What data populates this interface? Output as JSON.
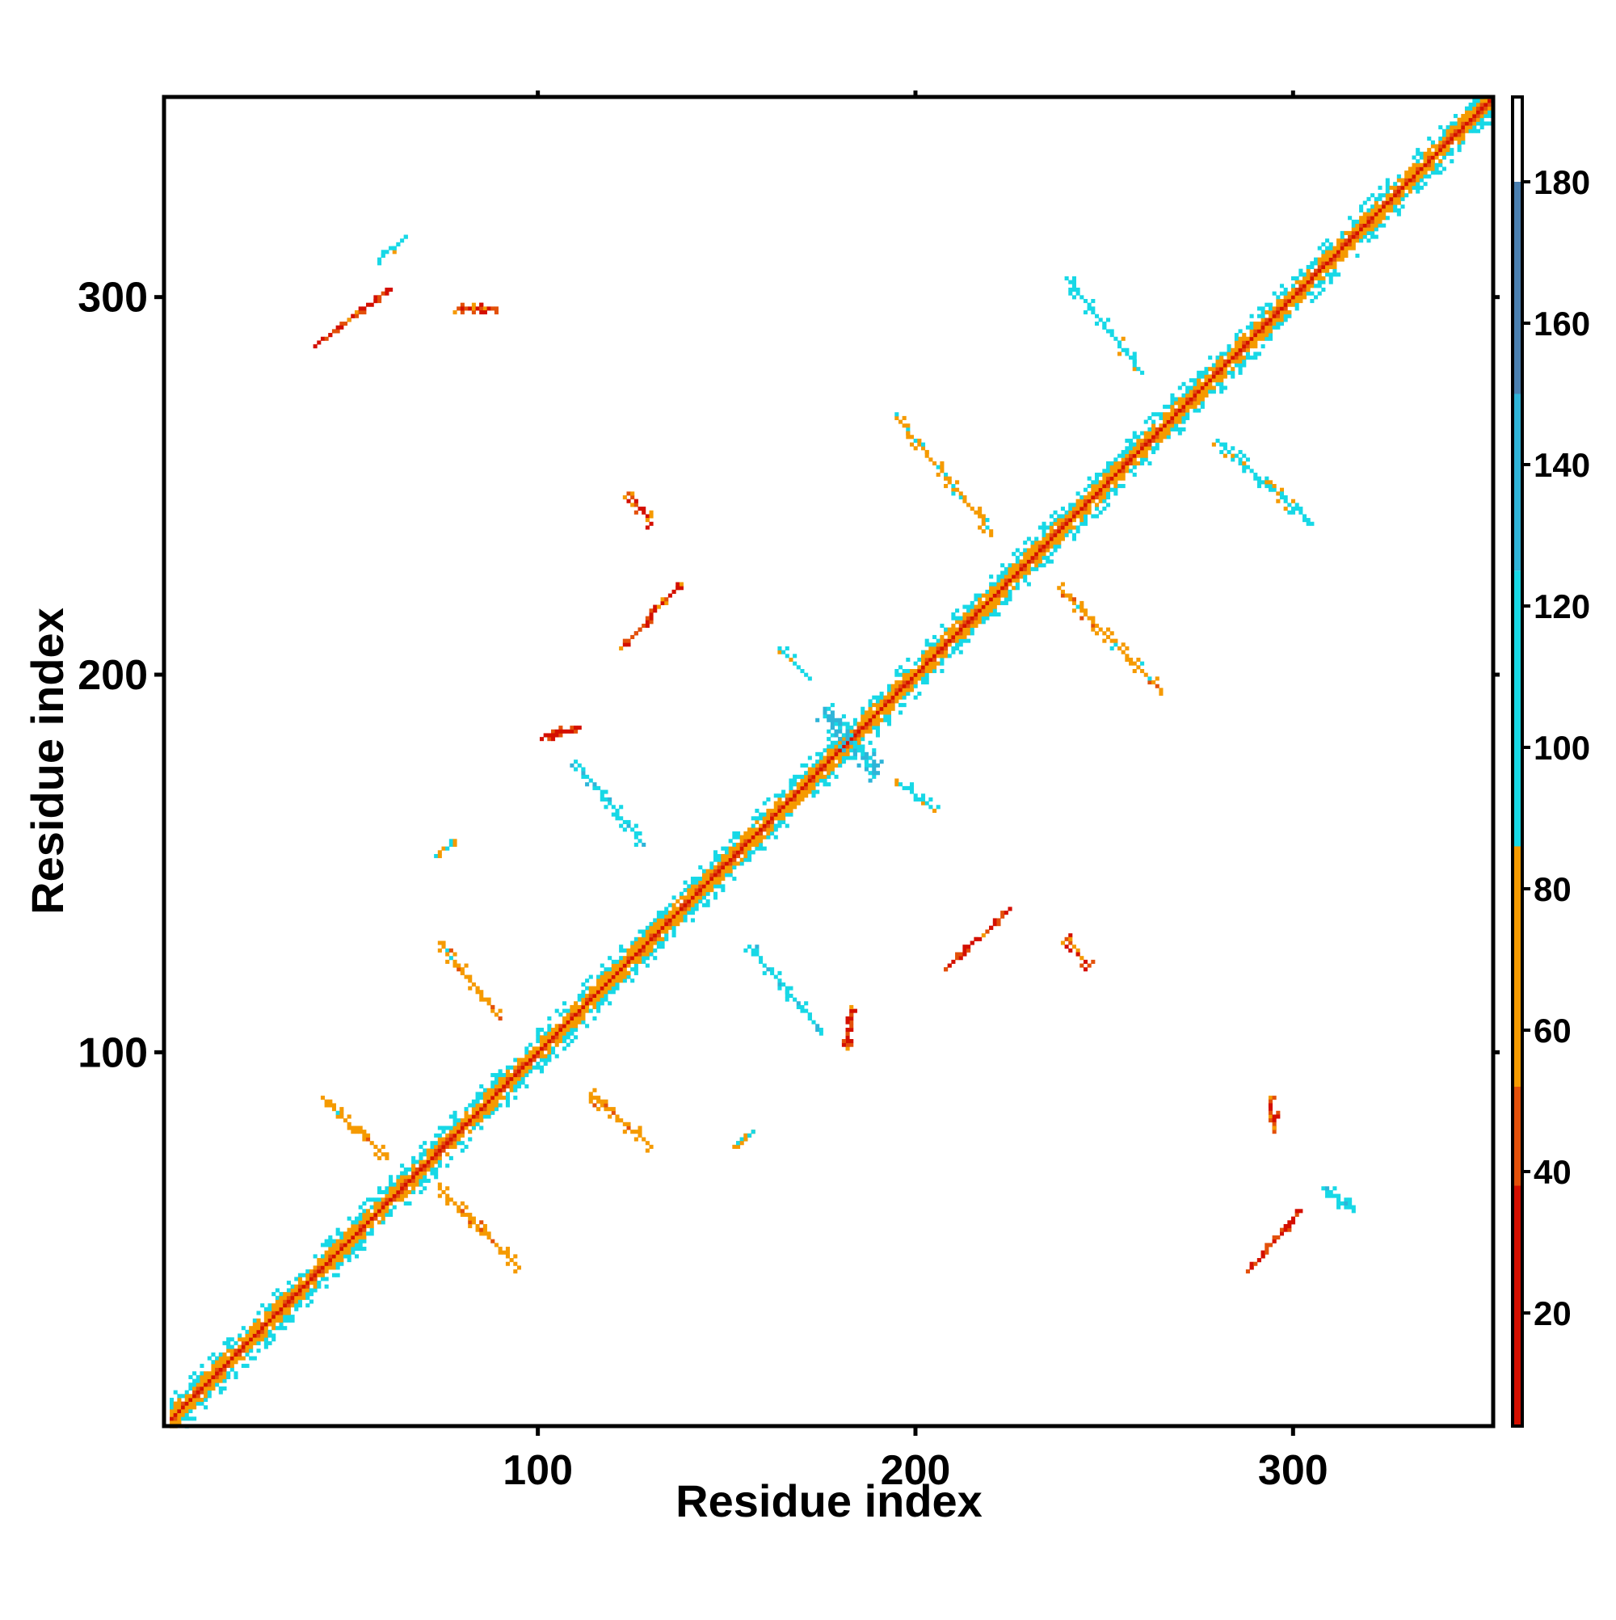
{
  "chart_data": {
    "type": "heatmap",
    "title": "",
    "xlabel": "Residue index",
    "ylabel": "Residue index",
    "xlim": [
      1,
      353
    ],
    "ylim": [
      1,
      353
    ],
    "x_ticks": [
      100,
      200,
      300
    ],
    "y_ticks": [
      100,
      200,
      300
    ],
    "x_tick_labels": [
      "100",
      "200",
      "300"
    ],
    "y_tick_labels": [
      "100",
      "200",
      "300"
    ],
    "grid": false,
    "colorbar": {
      "placement": "right",
      "range": [
        4,
        192
      ],
      "ticks": [
        20,
        40,
        60,
        80,
        100,
        120,
        140,
        160,
        180
      ],
      "tick_labels": [
        "20",
        "40",
        "60",
        "80",
        "100",
        "120",
        "140",
        "160",
        "180"
      ],
      "bands": [
        {
          "from": 4,
          "to": 38,
          "color": "#d40f00"
        },
        {
          "from": 38,
          "to": 52,
          "color": "#e3500a"
        },
        {
          "from": 52,
          "to": 86,
          "color": "#f59a00"
        },
        {
          "from": 86,
          "to": 125,
          "color": "#17d8e6"
        },
        {
          "from": 125,
          "to": 150,
          "color": "#2fb4d8"
        },
        {
          "from": 150,
          "to": 180,
          "color": "#4a7fb0"
        },
        {
          "from": 180,
          "to": 192,
          "color": "#ffffff"
        }
      ]
    },
    "diagonal": {
      "from": 3,
      "to": 352
    },
    "contact_segments": [
      {
        "x": [
          43,
          60
        ],
        "y": [
          88,
          72
        ],
        "value": 70
      },
      {
        "x": [
          74,
          95
        ],
        "y": [
          64,
          43
        ],
        "value": 65
      },
      {
        "x": [
          114,
          130
        ],
        "y": [
          89,
          75
        ],
        "value": 65
      },
      {
        "x": [
          156,
          175
        ],
        "y": [
          128,
          106
        ],
        "value": 110
      },
      {
        "x": [
          208,
          225
        ],
        "y": [
          122,
          138
        ],
        "value": 35
      },
      {
        "x": [
          182,
          183
        ],
        "y": [
          101,
          112
        ],
        "value": 40
      },
      {
        "x": [
          74,
          90
        ],
        "y": [
          129,
          109
        ],
        "value": 70
      },
      {
        "x": [
          73,
          78
        ],
        "y": [
          152,
          156
        ],
        "value": 75
      },
      {
        "x": [
          152,
          157
        ],
        "y": [
          75,
          79
        ],
        "value": 80
      },
      {
        "x": [
          110,
          128
        ],
        "y": [
          177,
          155
        ],
        "value": 110
      },
      {
        "x": [
          102,
          111
        ],
        "y": [
          184,
          186
        ],
        "value": 30
      },
      {
        "x": [
          122,
          138
        ],
        "y": [
          207,
          224
        ],
        "value": 35
      },
      {
        "x": [
          124,
          130
        ],
        "y": [
          248,
          240
        ],
        "value": 45
      },
      {
        "x": [
          164,
          172
        ],
        "y": [
          207,
          199
        ],
        "value": 95
      },
      {
        "x": [
          176,
          190
        ],
        "y": [
          190,
          174
        ],
        "value": 130
      },
      {
        "x": [
          195,
          205
        ],
        "y": [
          172,
          164
        ],
        "value": 95
      },
      {
        "x": [
          195,
          220
        ],
        "y": [
          268,
          238
        ],
        "value": 75
      },
      {
        "x": [
          238,
          265
        ],
        "y": [
          223,
          196
        ],
        "value": 70
      },
      {
        "x": [
          280,
          305
        ],
        "y": [
          262,
          240
        ],
        "value": 100
      },
      {
        "x": [
          240,
          260
        ],
        "y": [
          305,
          280
        ],
        "value": 105
      },
      {
        "x": [
          240,
          246
        ],
        "y": [
          130,
          123
        ],
        "value": 40
      },
      {
        "x": [
          294,
          295
        ],
        "y": [
          88,
          79
        ],
        "value": 45
      },
      {
        "x": [
          288,
          302
        ],
        "y": [
          42,
          58
        ],
        "value": 35
      },
      {
        "x": [
          308,
          316
        ],
        "y": [
          64,
          58
        ],
        "value": 115
      },
      {
        "x": [
          42,
          61
        ],
        "y": [
          288,
          302
        ],
        "value": 35
      },
      {
        "x": [
          58,
          65
        ],
        "y": [
          310,
          316
        ],
        "value": 105
      },
      {
        "x": [
          79,
          89
        ],
        "y": [
          297,
          297
        ],
        "value": 40
      }
    ]
  }
}
